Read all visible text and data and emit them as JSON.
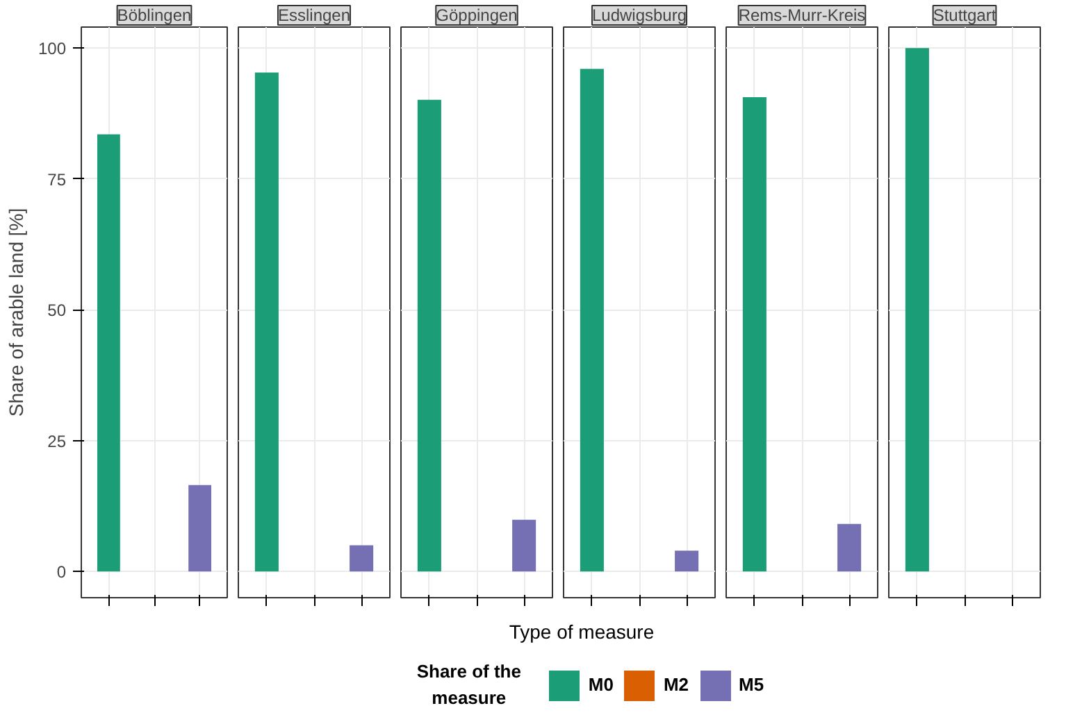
{
  "chart_data": {
    "type": "bar",
    "ylabel": "Share of arable land [%]",
    "xlabel": "Type of measure",
    "legend": "bottom",
    "legend_title": "Share of the measure",
    "categories": [
      "Böblingen",
      "Esslingen",
      "Göppingen",
      "Ludwigsburg",
      "Rems-Murr-Kreis",
      "Stuttgart"
    ],
    "ylim": [
      -5,
      104
    ],
    "yticks": [
      0,
      25,
      50,
      75,
      100
    ],
    "grid": true,
    "series": [
      {
        "name": "M0",
        "color": "#1b9e77",
        "values": [
          83.5,
          95.3,
          90.1,
          96.0,
          90.6,
          100
        ]
      },
      {
        "name": "M2",
        "color": "#d95f02",
        "values": [
          null,
          null,
          null,
          null,
          null,
          null
        ]
      },
      {
        "name": "M5",
        "color": "#7570b3",
        "values": [
          16.5,
          5.0,
          9.9,
          4.0,
          9.1,
          null
        ]
      }
    ]
  }
}
